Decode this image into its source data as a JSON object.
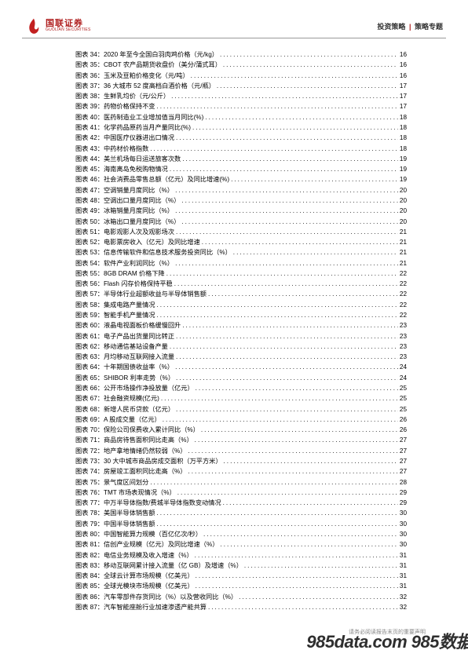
{
  "header": {
    "logo_cn": "国联证券",
    "logo_en": "GUOLIAN SECURITIES",
    "right_a": "投资策略",
    "right_sep": "|",
    "right_b": "策略专题"
  },
  "logo_colors": {
    "red": "#c21f1f",
    "accent": "#c21f1f"
  },
  "toc": [
    {
      "n": "34",
      "t": "2020 年至今全国白羽肉鸡价格（元/kg）",
      "p": "16"
    },
    {
      "n": "35",
      "t": "CBOT 农产品期货收盘价（美分/蒲式耳）",
      "p": "16"
    },
    {
      "n": "36",
      "t": "玉米及豆粕价格变化（元/吨）",
      "p": "16"
    },
    {
      "n": "37",
      "t": "36 大城市 52 度高档白酒价格（元/瓶）",
      "p": "17"
    },
    {
      "n": "38",
      "t": "生鲜乳均价（元/公斤）",
      "p": "17"
    },
    {
      "n": "39",
      "t": "药物价格保持不变",
      "p": "17"
    },
    {
      "n": "40",
      "t": "医药制造业工业增加值当月同比(%)",
      "p": "18"
    },
    {
      "n": "41",
      "t": "化学药品原药当月产量同比(%)",
      "p": "18"
    },
    {
      "n": "42",
      "t": "中国医疗仪器进出口情况",
      "p": "18"
    },
    {
      "n": "43",
      "t": "中药材价格指数",
      "p": "18"
    },
    {
      "n": "44",
      "t": "美兰机场每日运送旅客次数",
      "p": "19"
    },
    {
      "n": "45",
      "t": "海南离岛免税购物情况",
      "p": "19"
    },
    {
      "n": "46",
      "t": "社会消费品零售总额（亿元）及同比增速(%)",
      "p": "19"
    },
    {
      "n": "47",
      "t": "空调销量月度同比（%）",
      "p": "20"
    },
    {
      "n": "48",
      "t": "空调出口量月度同比（%）",
      "p": "20"
    },
    {
      "n": "49",
      "t": "冰箱销量月度同比（%）",
      "p": "20"
    },
    {
      "n": "50",
      "t": "冰箱出口量月度同比（%）",
      "p": "20"
    },
    {
      "n": "51",
      "t": "电影观影人次及观影场次",
      "p": "21"
    },
    {
      "n": "52",
      "t": "电影票房收入（亿元）及同比增速",
      "p": "21"
    },
    {
      "n": "53",
      "t": "信息传输软件和信息技术服务投资同比（%）",
      "p": "21"
    },
    {
      "n": "54",
      "t": "软件产业利润同比（%）",
      "p": "21"
    },
    {
      "n": "55",
      "t": "8GB DRAM 价格下降",
      "p": "22"
    },
    {
      "n": "56",
      "t": "Flash 闪存价格保持平稳",
      "p": "22"
    },
    {
      "n": "57",
      "t": "半导体行业超额收益与半导体销售额",
      "p": "22"
    },
    {
      "n": "58",
      "t": "集成电路产量情况",
      "p": "22"
    },
    {
      "n": "59",
      "t": "智能手机产量情况",
      "p": "22"
    },
    {
      "n": "60",
      "t": "液晶电视面板价格缓慢回升",
      "p": "23"
    },
    {
      "n": "61",
      "t": "电子产品出货量同比转正",
      "p": "23"
    },
    {
      "n": "62",
      "t": "移动通信基站设备产量",
      "p": "23"
    },
    {
      "n": "63",
      "t": "月均移动互联网接入流量",
      "p": "23"
    },
    {
      "n": "64",
      "t": "十年期国债收益率（%）",
      "p": "24"
    },
    {
      "n": "65",
      "t": "SHIBOR 利率走势（%）",
      "p": "24"
    },
    {
      "n": "66",
      "t": "公开市场操作净投放量（亿元）",
      "p": "25"
    },
    {
      "n": "67",
      "t": "社会融资规模(亿元)",
      "p": "25"
    },
    {
      "n": "68",
      "t": "新增人民币贷款（亿元）",
      "p": "25"
    },
    {
      "n": "69",
      "t": "A 股成交量（亿元）",
      "p": "26"
    },
    {
      "n": "70",
      "t": "保险公司保费收入累计同比（%）",
      "p": "26"
    },
    {
      "n": "71",
      "t": "商品房待售面积同比走高（%）",
      "p": "27"
    },
    {
      "n": "72",
      "t": "地产拿地情绪仍然较弱（%）",
      "p": "27"
    },
    {
      "n": "73",
      "t": "30 大中城市商品房成交面积（万平方米）",
      "p": "27"
    },
    {
      "n": "74",
      "t": "房屋竣工面积同比走高（%）",
      "p": "27"
    },
    {
      "n": "75",
      "t": "景气度区间划分",
      "p": "28"
    },
    {
      "n": "76",
      "t": "TMT 市场表现情况（%）",
      "p": "29"
    },
    {
      "n": "77",
      "t": "中万半导体指数/费城半导体指数变动情况",
      "p": "29"
    },
    {
      "n": "78",
      "t": "美国半导体销售额",
      "p": "30"
    },
    {
      "n": "79",
      "t": "中国半导体销售额",
      "p": "30"
    },
    {
      "n": "80",
      "t": "中国智能算力规模（百亿亿次/秒）",
      "p": "30"
    },
    {
      "n": "81",
      "t": "信创产业规模（亿元）及同比增速（%）",
      "p": "30"
    },
    {
      "n": "82",
      "t": "电信业务规模及收入增速（%）",
      "p": "31"
    },
    {
      "n": "83",
      "t": "移动互联网累计接入流量（亿 GB）及增速（%）",
      "p": "31"
    },
    {
      "n": "84",
      "t": "全球云计算市场规模（亿美元）",
      "p": "31"
    },
    {
      "n": "85",
      "t": "全球光模块市场规模（亿美元）",
      "p": "31"
    },
    {
      "n": "86",
      "t": "汽车零部件存货同比（%）以及营收同比（%）",
      "p": "32"
    },
    {
      "n": "87",
      "t": "汽车智能座舱行业加速渗透产能共算",
      "p": "32"
    }
  ],
  "watermark": "985data.com 985数据",
  "footer_note": "请务必阅读报告末页的重要声明"
}
